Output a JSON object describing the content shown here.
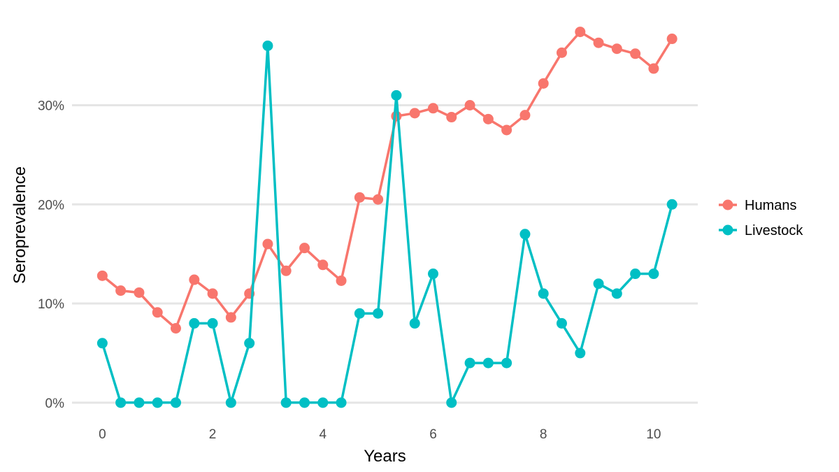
{
  "chart_data": {
    "type": "line",
    "title": "",
    "xlabel": "Years",
    "ylabel": "Seroprevalence",
    "xlim": [
      -0.55,
      10.8
    ],
    "ylim": [
      -1.0,
      38.5
    ],
    "x_ticks": [
      0,
      2,
      4,
      6,
      8,
      10
    ],
    "x_tick_labels": [
      "0",
      "2",
      "4",
      "6",
      "8",
      "10"
    ],
    "y_ticks": [
      0,
      10,
      20,
      30
    ],
    "y_tick_labels": [
      "0%",
      "10%",
      "20%",
      "30%"
    ],
    "grid": true,
    "legend_position": "right",
    "x": [
      0,
      0.333,
      0.667,
      1,
      1.333,
      1.667,
      2,
      2.333,
      2.667,
      3,
      3.333,
      3.667,
      4,
      4.333,
      4.667,
      5,
      5.333,
      5.667,
      6,
      6.333,
      6.667,
      7,
      7.333,
      7.667,
      8,
      8.333,
      8.667,
      9,
      9.333,
      9.667,
      10,
      10.333
    ],
    "series": [
      {
        "name": "Humans",
        "color": "#F8766D",
        "values": [
          12.8,
          11.3,
          11.1,
          9.1,
          7.5,
          12.4,
          11.0,
          8.6,
          11.0,
          16.0,
          13.3,
          15.6,
          13.9,
          12.3,
          20.7,
          20.5,
          28.9,
          29.2,
          29.7,
          28.8,
          30.0,
          28.6,
          27.5,
          29.0,
          32.2,
          35.3,
          37.4,
          36.3,
          35.7,
          35.2,
          33.7,
          36.7
        ]
      },
      {
        "name": "Livestock",
        "color": "#00BFC4",
        "values": [
          6,
          0,
          0,
          0,
          0,
          8,
          8,
          0,
          6,
          36,
          0,
          0,
          0,
          0,
          9,
          9,
          31,
          8,
          13,
          0,
          4,
          4,
          4,
          17,
          11,
          8,
          5,
          12,
          11,
          13,
          13,
          20
        ]
      }
    ]
  }
}
